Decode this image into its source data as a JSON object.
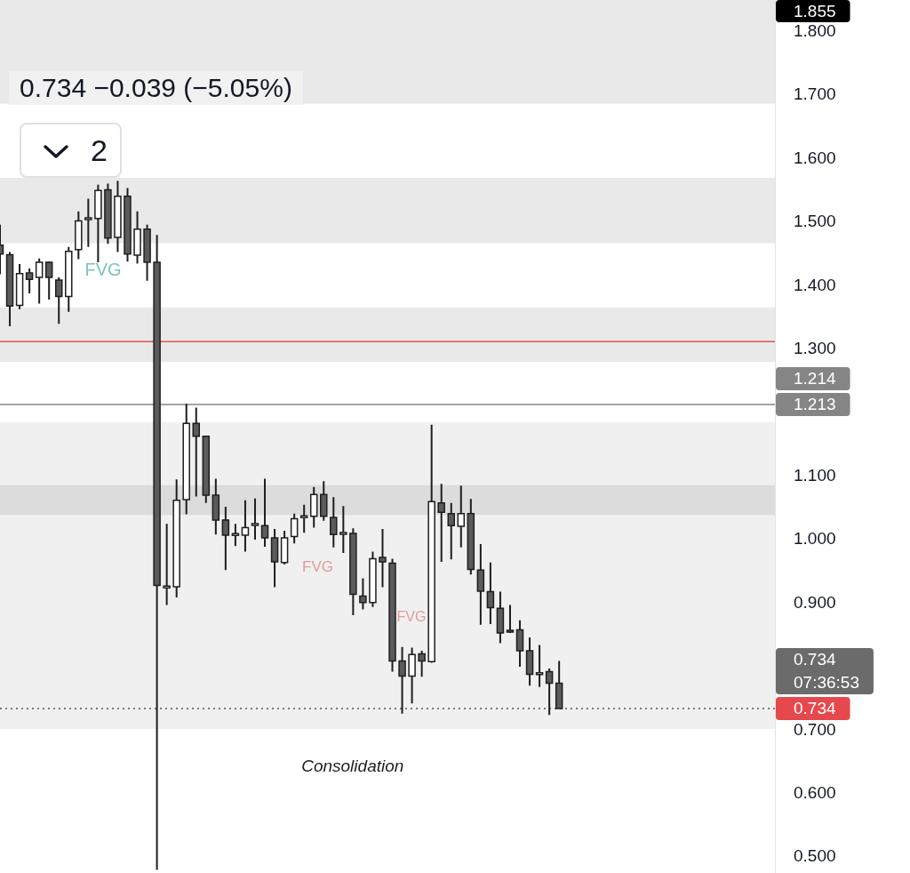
{
  "chart_data": {
    "type": "candlestick",
    "subtitle": "0.734 −0.039 (−5.05%)",
    "categories": [
      null,
      null,
      null,
      null,
      null,
      null,
      null,
      null,
      null,
      null,
      null,
      null,
      null,
      null,
      null,
      null,
      null,
      null,
      null,
      null,
      null,
      null,
      null,
      null,
      null,
      null,
      null,
      null,
      null,
      null,
      null,
      null,
      null,
      null,
      null,
      null,
      null,
      null,
      null,
      null,
      null,
      null,
      null,
      null,
      null,
      null,
      null,
      null,
      null,
      null,
      null,
      null,
      null,
      null,
      null,
      null,
      null,
      null,
      null,
      null,
      null,
      null,
      null,
      null,
      null,
      null,
      null,
      null,
      null,
      null,
      null,
      null,
      null,
      null,
      null,
      null,
      null,
      null,
      null,
      null
    ],
    "ohlc": [
      [
        1.464,
        1.496,
        1.418,
        1.45
      ],
      [
        1.449,
        1.453,
        1.336,
        1.368
      ],
      [
        1.369,
        1.434,
        1.363,
        1.419
      ],
      [
        1.42,
        1.427,
        1.388,
        1.41
      ],
      [
        1.413,
        1.443,
        1.372,
        1.437
      ],
      [
        1.437,
        1.438,
        1.378,
        1.413
      ],
      [
        1.409,
        1.413,
        1.34,
        1.383
      ],
      [
        1.383,
        1.461,
        1.359,
        1.454
      ],
      [
        1.457,
        1.517,
        1.442,
        1.502
      ],
      [
        1.505,
        1.537,
        1.461,
        1.506
      ],
      [
        1.506,
        1.559,
        1.437,
        1.55
      ],
      [
        1.551,
        1.561,
        1.466,
        1.475
      ],
      [
        1.476,
        1.565,
        1.453,
        1.541
      ],
      [
        1.541,
        1.554,
        1.438,
        1.45
      ],
      [
        1.448,
        1.517,
        1.435,
        1.489
      ],
      [
        1.489,
        1.496,
        1.408,
        1.437
      ],
      [
        1.437,
        1.48,
        0.48,
        0.928
      ],
      [
        0.925,
        1.025,
        0.897,
        0.926
      ],
      [
        0.926,
        1.095,
        0.909,
        1.062
      ],
      [
        1.063,
        1.214,
        1.04,
        1.183
      ],
      [
        1.183,
        1.208,
        1.068,
        1.163
      ],
      [
        1.163,
        1.164,
        1.058,
        1.07
      ],
      [
        1.07,
        1.096,
        1.008,
        1.031
      ],
      [
        1.031,
        1.052,
        0.952,
        1.007
      ],
      [
        1.008,
        1.025,
        0.99,
        1.008
      ],
      [
        1.007,
        1.062,
        0.981,
        1.019
      ],
      [
        1.024,
        1.065,
        1.0,
        1.024
      ],
      [
        1.022,
        1.096,
        0.989,
        1.003
      ],
      [
        1.003,
        1.017,
        0.925,
        0.965
      ],
      [
        0.964,
        1.014,
        0.961,
        1.003
      ],
      [
        1.005,
        1.041,
        0.994,
        1.033
      ],
      [
        1.036,
        1.055,
        1.011,
        1.036
      ],
      [
        1.037,
        1.083,
        1.019,
        1.071
      ],
      [
        1.071,
        1.092,
        1.03,
        1.037
      ],
      [
        1.035,
        1.067,
        0.988,
        1.008
      ],
      [
        1.01,
        1.053,
        0.979,
        1.01
      ],
      [
        1.01,
        1.018,
        0.881,
        0.914
      ],
      [
        0.911,
        0.939,
        0.89,
        0.901
      ],
      [
        0.901,
        0.981,
        0.894,
        0.97
      ],
      [
        0.972,
        1.017,
        0.925,
        0.965
      ],
      [
        0.963,
        0.97,
        0.792,
        0.809
      ],
      [
        0.809,
        0.831,
        0.726,
        0.785
      ],
      [
        0.785,
        0.83,
        0.742,
        0.819
      ],
      [
        0.82,
        0.825,
        0.784,
        0.809
      ],
      [
        0.808,
        1.181,
        0.806,
        1.06
      ],
      [
        1.058,
        1.088,
        0.965,
        1.043
      ],
      [
        1.041,
        1.058,
        0.969,
        1.022
      ],
      [
        1.021,
        1.085,
        0.988,
        1.041
      ],
      [
        1.041,
        1.064,
        0.945,
        0.953
      ],
      [
        0.952,
        0.993,
        0.866,
        0.919
      ],
      [
        0.918,
        0.964,
        0.867,
        0.893
      ],
      [
        0.892,
        0.918,
        0.837,
        0.853
      ],
      [
        0.857,
        0.897,
        0.853,
        0.855
      ],
      [
        0.858,
        0.873,
        0.8,
        0.825
      ],
      [
        0.825,
        0.846,
        0.77,
        0.788
      ],
      [
        0.789,
        0.834,
        0.768,
        0.789
      ],
      [
        0.792,
        0.797,
        0.724,
        0.774
      ],
      [
        0.774,
        0.809,
        0.734,
        0.734
      ],
      null,
      null,
      null,
      null,
      null,
      null,
      null,
      null,
      null,
      null,
      null,
      null,
      null,
      null,
      null,
      null,
      null,
      null,
      null,
      null,
      null,
      null
    ],
    "color": "#1e1e1e",
    "colors": [
      "#5b5b5b",
      "#5b5b5b",
      "#ffffff",
      "#5b5b5b",
      "#ffffff",
      "#5b5b5b",
      "#5b5b5b",
      "#ffffff",
      "#ffffff",
      "#ffffff",
      "#ffffff",
      "#5b5b5b",
      "#ffffff",
      "#5b5b5b",
      "#ffffff",
      "#5b5b5b",
      "#5b5b5b",
      "#ffffff",
      "#ffffff",
      "#ffffff",
      "#5b5b5b",
      "#5b5b5b",
      "#5b5b5b",
      "#5b5b5b",
      "#ffffff",
      "#ffffff",
      "#ffffff",
      "#5b5b5b",
      "#5b5b5b",
      "#ffffff",
      "#ffffff",
      "#ffffff",
      "#ffffff",
      "#5b5b5b",
      "#5b5b5b",
      "#ffffff",
      "#5b5b5b",
      "#5b5b5b",
      "#ffffff",
      "#5b5b5b",
      "#5b5b5b",
      "#5b5b5b",
      "#ffffff",
      "#5b5b5b",
      "#ffffff",
      "#5b5b5b",
      "#5b5b5b",
      "#ffffff",
      "#5b5b5b",
      "#5b5b5b",
      "#5b5b5b",
      "#5b5b5b",
      "#5b5b5b",
      "#5b5b5b",
      "#5b5b5b",
      "#ffffff",
      "#5b5b5b",
      "#5b5b5b",
      null,
      null,
      null,
      null,
      null,
      null,
      null,
      null,
      null,
      null,
      null,
      null,
      null,
      null,
      null,
      null,
      null,
      null,
      null,
      null,
      null,
      null
    ],
    "ylim": [
      0.475,
      1.85
    ],
    "yticks": [
      {
        "value": 0.5,
        "label": "0.500"
      },
      {
        "value": 0.6,
        "label": "0.600"
      },
      {
        "value": 0.7,
        "label": "0.700"
      },
      {
        "value": 0.9,
        "label": "0.900"
      },
      {
        "value": 1.0,
        "label": "1.000"
      },
      {
        "value": 1.1,
        "label": "1.100"
      },
      {
        "value": 1.3,
        "label": "1.300"
      },
      {
        "value": 1.4,
        "label": "1.400"
      },
      {
        "value": 1.5,
        "label": "1.500"
      },
      {
        "value": 1.6,
        "label": "1.600"
      },
      {
        "value": 1.7,
        "label": "1.700"
      },
      {
        "value": 1.8,
        "label": "1.800"
      }
    ],
    "tick_labels": "y",
    "bands": [
      {
        "axis": "y",
        "from": 1.687,
        "to": 1.85,
        "color": "#e9e9e9"
      },
      {
        "axis": "y",
        "from": 1.467,
        "to": 1.57,
        "color": "#e9e9e9"
      },
      {
        "axis": "y",
        "from": 1.28,
        "to": 1.366,
        "color": "#e9e9e9"
      },
      {
        "axis": "y",
        "from": 0.702,
        "to": 1.185,
        "color": "#f0f0f0",
        "label": "Consolidation"
      },
      {
        "axis": "y",
        "from": 1.039,
        "to": 1.086,
        "color": "#dcdcdc"
      }
    ],
    "ref_lines": [
      {
        "axis": "y",
        "value": 1.312,
        "color": "#e05252"
      },
      {
        "axis": "y",
        "value": 1.213,
        "label": "1.213",
        "color": "#858585"
      },
      {
        "axis": "y",
        "value": 0.734,
        "label": "0.734",
        "color": "#555555",
        "line_style": "dotted"
      }
    ],
    "annotations": [
      "2",
      "FVG",
      "FVG",
      "FVG",
      "1.855",
      "1.214",
      "0.734",
      "07:36:53"
    ]
  }
}
